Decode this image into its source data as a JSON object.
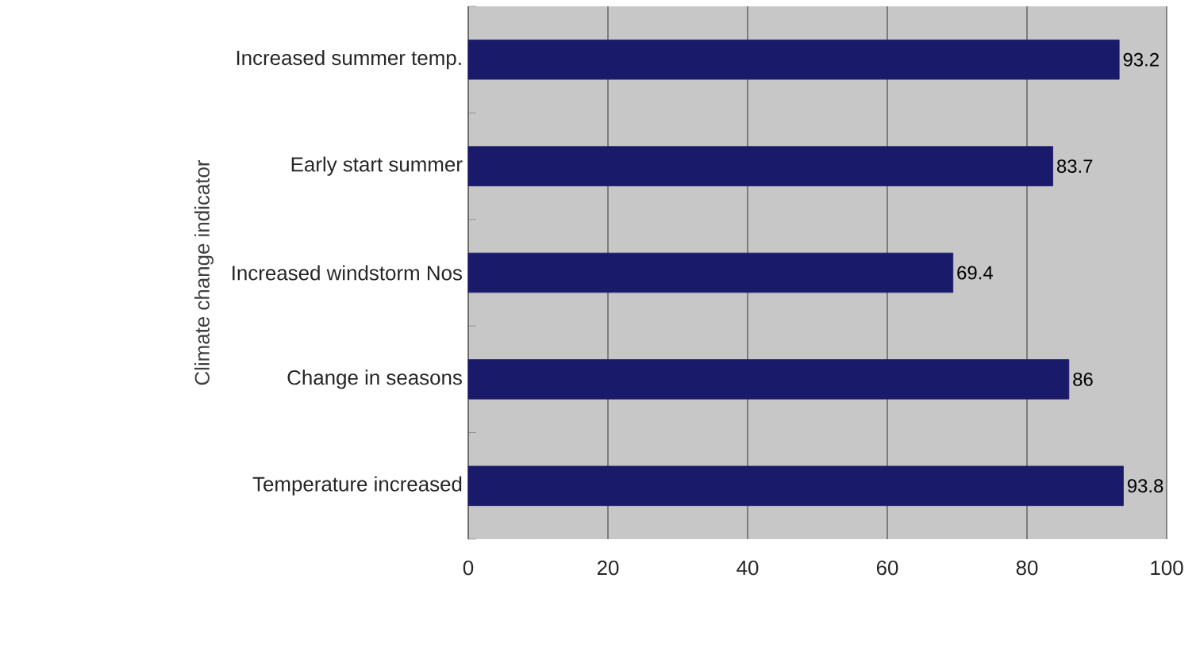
{
  "chart_data": {
    "type": "bar",
    "orientation": "horizontal",
    "ylabel": "Climate change indicator",
    "categories": [
      "Increased summer temp.",
      "Early start summer",
      "Increased windstorm Nos",
      "Change in seasons",
      "Temperature increased"
    ],
    "values": [
      93.2,
      83.7,
      69.4,
      86,
      93.8
    ],
    "color": "#1a1a6b",
    "xlim": [
      0,
      100
    ],
    "xticks": [
      0,
      20,
      40,
      60,
      80,
      100
    ],
    "grid": "x",
    "data_labels": true
  }
}
